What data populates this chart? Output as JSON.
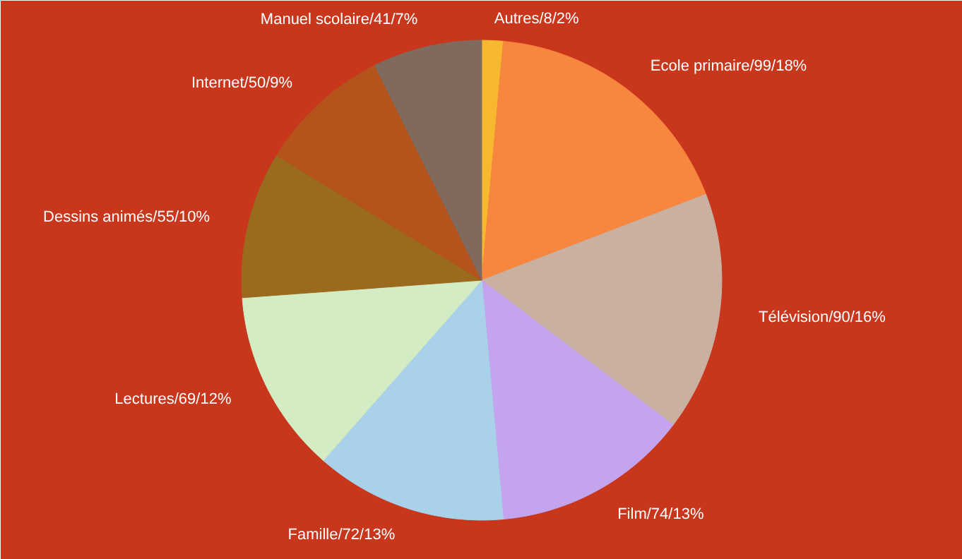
{
  "chart_data": {
    "type": "pie",
    "categories": [
      "Autres",
      "Ecole primaire",
      "Télévision",
      "Film",
      "Famille",
      "Lectures",
      "Dessins animés",
      "Internet",
      "Manuel scolaire"
    ],
    "values": [
      8,
      99,
      90,
      74,
      72,
      69,
      55,
      50,
      41
    ],
    "colors": [
      "#f5b82e",
      "#f7863f",
      "#c9b0a0",
      "#c4a4ee",
      "#a9d2ea",
      "#d4ecc4",
      "#9a6a1e",
      "#b5531c",
      "#806a5e"
    ],
    "value_labels": [
      "/8/2%",
      "/99/18%",
      "/90/16%",
      "/74/13%",
      "/72/13%",
      "/69/12%",
      "/55/10%",
      "/50/9%",
      "/41/7%"
    ]
  }
}
